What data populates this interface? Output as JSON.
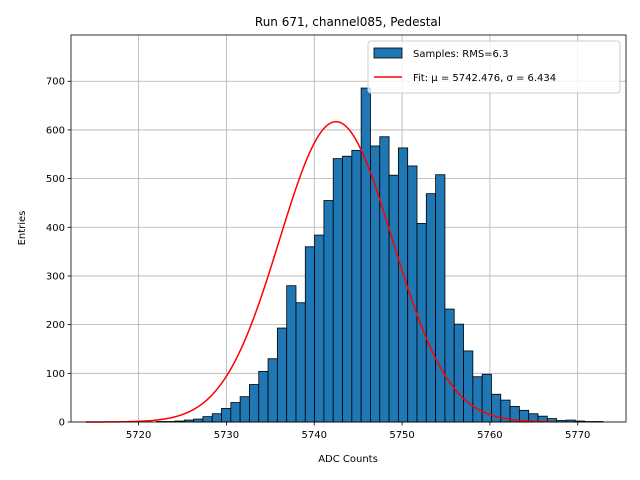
{
  "chart_data": {
    "type": "bar",
    "title": "Run 671, channel085, Pedestal",
    "xlabel": "ADC Counts",
    "ylabel": "Entries",
    "xlim": [
      5712.3,
      5775.5
    ],
    "ylim": [
      0,
      795
    ],
    "grid": true,
    "legend_position": "top-right",
    "x_ticks": [
      5720,
      5730,
      5740,
      5750,
      5760,
      5770
    ],
    "y_ticks": [
      0,
      100,
      200,
      300,
      400,
      500,
      600,
      700
    ],
    "bin_edges_start": 5714.6,
    "bin_width": 1.06,
    "counts": [
      0,
      0,
      0,
      0,
      0,
      0,
      0,
      1,
      1,
      2,
      4,
      6,
      11,
      17,
      28,
      40,
      52,
      77,
      104,
      130,
      193,
      280,
      245,
      360,
      384,
      455,
      541,
      546,
      558,
      686,
      567,
      586,
      507,
      563,
      526,
      408,
      469,
      508,
      232,
      201,
      146,
      93,
      98,
      57,
      45,
      32,
      24,
      17,
      12,
      7,
      3,
      4,
      2,
      1,
      1,
      0,
      0,
      0,
      0,
      0,
      0,
      0,
      0,
      0,
      0,
      0
    ],
    "series": [
      {
        "name": "Samples: RMS=6.3",
        "color": "#1f77b4",
        "edgecolor": "#000000"
      },
      {
        "name": "Fit: μ = 5742.476, σ = 6.434",
        "color": "#ff0000",
        "mu": 5742.476,
        "sigma": 6.434,
        "amplitude": 617,
        "x_range": [
          5714.0,
          5767.0
        ]
      }
    ]
  }
}
